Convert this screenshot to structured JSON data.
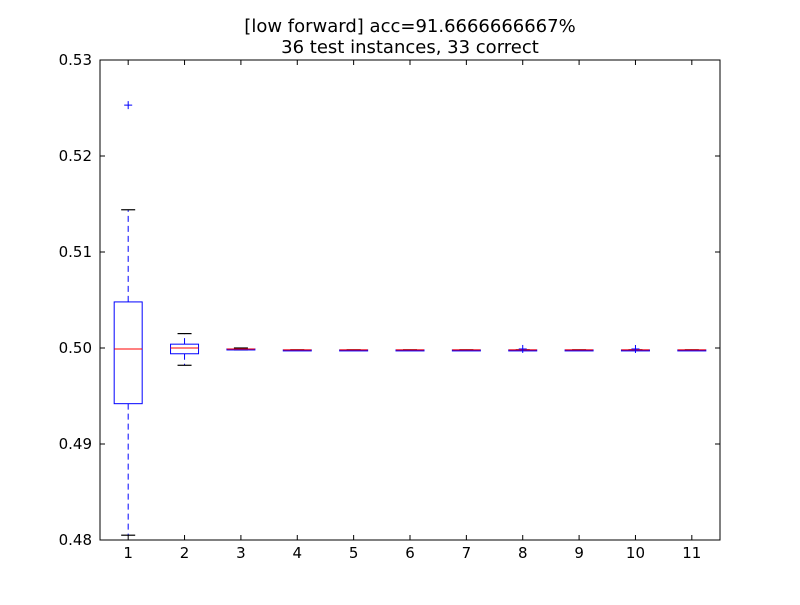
{
  "chart_data": {
    "type": "box",
    "title": "[low forward] acc=91.6666666667%",
    "subtitle": "36 test instances, 33 correct",
    "xlabel": "",
    "ylabel": "",
    "ylim": [
      0.48,
      0.53
    ],
    "yticks": [
      "0.48",
      "0.49",
      "0.50",
      "0.51",
      "0.52",
      "0.53"
    ],
    "categories": [
      "1",
      "2",
      "3",
      "4",
      "5",
      "6",
      "7",
      "8",
      "9",
      "10",
      "11"
    ],
    "boxes": [
      {
        "min": 0.4805,
        "q1": 0.4942,
        "median": 0.4999,
        "q3": 0.5048,
        "max": 0.5144,
        "outliers": [
          0.5253
        ]
      },
      {
        "min": 0.4982,
        "q1": 0.4994,
        "median": 0.5,
        "q3": 0.5004,
        "max": 0.5015,
        "outliers": []
      },
      {
        "min": 0.4998,
        "q1": 0.4998,
        "median": 0.4999,
        "q3": 0.4999,
        "max": 0.5,
        "outliers": []
      },
      {
        "min": 0.4998,
        "q1": 0.4998,
        "median": 0.4998,
        "q3": 0.4998,
        "max": 0.4998,
        "outliers": []
      },
      {
        "min": 0.4998,
        "q1": 0.4998,
        "median": 0.4998,
        "q3": 0.4998,
        "max": 0.4998,
        "outliers": []
      },
      {
        "min": 0.4998,
        "q1": 0.4998,
        "median": 0.4998,
        "q3": 0.4998,
        "max": 0.4998,
        "outliers": []
      },
      {
        "min": 0.4998,
        "q1": 0.4998,
        "median": 0.4998,
        "q3": 0.4998,
        "max": 0.4998,
        "outliers": []
      },
      {
        "min": 0.4998,
        "q1": 0.4998,
        "median": 0.4998,
        "q3": 0.4998,
        "max": 0.4998,
        "outliers": [
          0.4999
        ]
      },
      {
        "min": 0.4998,
        "q1": 0.4998,
        "median": 0.4998,
        "q3": 0.4998,
        "max": 0.4998,
        "outliers": []
      },
      {
        "min": 0.4998,
        "q1": 0.4998,
        "median": 0.4998,
        "q3": 0.4998,
        "max": 0.4998,
        "outliers": [
          0.4999
        ]
      },
      {
        "min": 0.4998,
        "q1": 0.4998,
        "median": 0.4998,
        "q3": 0.4998,
        "max": 0.4998,
        "outliers": []
      }
    ],
    "grid": false,
    "colors": {
      "box": "#0000ff",
      "median": "#ff0000",
      "whisker": "#0000ff",
      "cap": "#000000",
      "outlier": "#0000ff"
    }
  }
}
